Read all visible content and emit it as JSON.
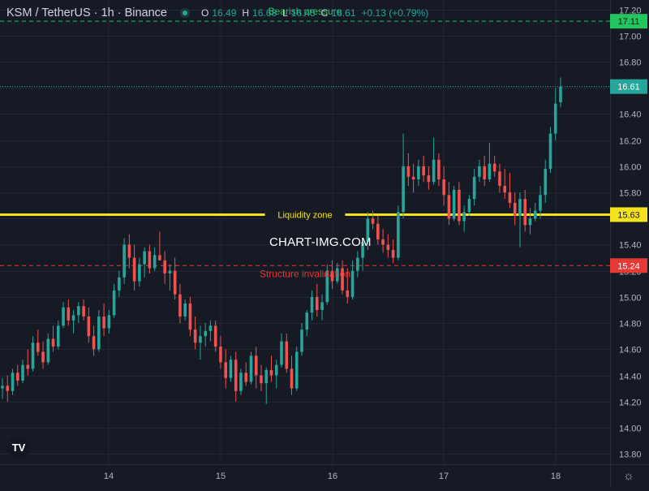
{
  "header": {
    "symbol": "KSM / TetherUS · 1h · Binance",
    "o_label": "O",
    "o_value": "16.49",
    "h_label": "H",
    "h_value": "16.68",
    "l_label": "L",
    "l_value": "16.45",
    "c_label": "C",
    "c_value": "16.61",
    "change": "+0.13 (+0.79%)"
  },
  "watermark": "CHART-IMG.COM",
  "logo_text": "TV",
  "colors": {
    "background": "#161a25",
    "grid": "#232734",
    "up": "#26a69a",
    "down": "#ef5350",
    "liquidity": "#f5e21f",
    "bearish": "#22c55e",
    "structure": "#e53935",
    "axis_text": "#b2b5be"
  },
  "chart_data": {
    "type": "candlestick",
    "symbol": "KSM / TetherUS",
    "interval": "1h",
    "exchange": "Binance",
    "ylim": [
      13.72,
      17.26
    ],
    "y_ticks": [
      "13.80",
      "14.00",
      "14.20",
      "14.40",
      "14.60",
      "14.80",
      "15.00",
      "15.20",
      "15.40",
      "15.60",
      "15.80",
      "16.00",
      "16.20",
      "16.40",
      "16.60",
      "16.80",
      "17.00",
      "17.20"
    ],
    "x_ticks": [
      "14",
      "15",
      "16",
      "17",
      "18"
    ],
    "last_price": "16.61",
    "levels": [
      {
        "label": "Bearish pressure",
        "price": "17.11",
        "value": 17.11,
        "style": "dashed",
        "color": "#22c55e"
      },
      {
        "label": "Liquidity zone",
        "price": "15.63",
        "value": 15.63,
        "style": "solid",
        "color": "#f5e21f"
      },
      {
        "label": "Structure invalidation",
        "price": "15.24",
        "value": 15.24,
        "style": "dashed",
        "color": "#e53935"
      }
    ],
    "candles": [
      [
        14.3,
        14.38,
        14.22,
        14.32
      ],
      [
        14.32,
        14.4,
        14.2,
        14.28
      ],
      [
        14.28,
        14.45,
        14.25,
        14.42
      ],
      [
        14.42,
        14.48,
        14.32,
        14.36
      ],
      [
        14.36,
        14.52,
        14.34,
        14.48
      ],
      [
        14.48,
        14.6,
        14.4,
        14.45
      ],
      [
        14.45,
        14.7,
        14.43,
        14.65
      ],
      [
        14.65,
        14.75,
        14.55,
        14.58
      ],
      [
        14.58,
        14.66,
        14.45,
        14.5
      ],
      [
        14.5,
        14.72,
        14.48,
        14.68
      ],
      [
        14.68,
        14.78,
        14.58,
        14.62
      ],
      [
        14.62,
        14.82,
        14.6,
        14.78
      ],
      [
        14.78,
        14.96,
        14.76,
        14.92
      ],
      [
        14.92,
        14.98,
        14.78,
        14.82
      ],
      [
        14.82,
        14.9,
        14.72,
        14.86
      ],
      [
        14.86,
        14.96,
        14.8,
        14.93
      ],
      [
        14.93,
        14.98,
        14.82,
        14.85
      ],
      [
        14.85,
        14.92,
        14.65,
        14.7
      ],
      [
        14.7,
        14.78,
        14.55,
        14.6
      ],
      [
        14.6,
        14.9,
        14.58,
        14.85
      ],
      [
        14.85,
        14.95,
        14.7,
        14.76
      ],
      [
        14.76,
        14.9,
        14.72,
        14.86
      ],
      [
        14.86,
        15.1,
        14.84,
        15.05
      ],
      [
        15.05,
        15.2,
        15.0,
        15.15
      ],
      [
        15.15,
        15.45,
        15.1,
        15.4
      ],
      [
        15.4,
        15.48,
        15.22,
        15.3
      ],
      [
        15.3,
        15.4,
        15.05,
        15.12
      ],
      [
        15.12,
        15.3,
        15.08,
        15.25
      ],
      [
        15.25,
        15.38,
        15.15,
        15.35
      ],
      [
        15.35,
        15.4,
        15.18,
        15.22
      ],
      [
        15.22,
        15.38,
        15.2,
        15.32
      ],
      [
        15.32,
        15.5,
        15.28,
        15.28
      ],
      [
        15.28,
        15.35,
        15.1,
        15.18
      ],
      [
        15.18,
        15.25,
        15.05,
        15.2
      ],
      [
        15.2,
        15.3,
        14.98,
        15.02
      ],
      [
        15.02,
        15.1,
        14.8,
        14.85
      ],
      [
        14.85,
        14.98,
        14.82,
        14.95
      ],
      [
        14.95,
        15.0,
        14.7,
        14.75
      ],
      [
        14.75,
        14.85,
        14.6,
        14.65
      ],
      [
        14.65,
        14.78,
        14.52,
        14.7
      ],
      [
        14.7,
        14.8,
        14.62,
        14.74
      ],
      [
        14.74,
        14.82,
        14.66,
        14.78
      ],
      [
        14.78,
        14.82,
        14.58,
        14.62
      ],
      [
        14.62,
        14.7,
        14.45,
        14.5
      ],
      [
        14.5,
        14.6,
        14.3,
        14.38
      ],
      [
        14.38,
        14.55,
        14.35,
        14.52
      ],
      [
        14.52,
        14.58,
        14.2,
        14.28
      ],
      [
        14.28,
        14.45,
        14.25,
        14.42
      ],
      [
        14.42,
        14.5,
        14.32,
        14.35
      ],
      [
        14.35,
        14.58,
        14.33,
        14.55
      ],
      [
        14.55,
        14.62,
        14.3,
        14.4
      ],
      [
        14.4,
        14.48,
        14.28,
        14.34
      ],
      [
        14.34,
        14.46,
        14.18,
        14.44
      ],
      [
        14.44,
        14.55,
        14.35,
        14.4
      ],
      [
        14.4,
        14.52,
        14.3,
        14.48
      ],
      [
        14.48,
        14.72,
        14.46,
        14.66
      ],
      [
        14.66,
        14.72,
        14.42,
        14.45
      ],
      [
        14.45,
        14.55,
        14.25,
        14.3
      ],
      [
        14.3,
        14.62,
        14.28,
        14.58
      ],
      [
        14.58,
        14.8,
        14.55,
        14.75
      ],
      [
        14.75,
        14.9,
        14.7,
        14.88
      ],
      [
        14.88,
        15.05,
        14.82,
        15.0
      ],
      [
        15.0,
        15.1,
        14.85,
        14.9
      ],
      [
        14.9,
        15.02,
        14.82,
        14.96
      ],
      [
        14.96,
        15.25,
        14.94,
        15.2
      ],
      [
        15.2,
        15.28,
        15.06,
        15.12
      ],
      [
        15.12,
        15.26,
        15.1,
        15.22
      ],
      [
        15.22,
        15.28,
        15.02,
        15.05
      ],
      [
        15.05,
        15.22,
        14.95,
        15.0
      ],
      [
        15.0,
        15.28,
        14.98,
        15.2
      ],
      [
        15.2,
        15.35,
        15.15,
        15.3
      ],
      [
        15.3,
        15.45,
        15.2,
        15.42
      ],
      [
        15.42,
        15.65,
        15.36,
        15.6
      ],
      [
        15.6,
        15.66,
        15.52,
        15.56
      ],
      [
        15.56,
        15.62,
        15.4,
        15.44
      ],
      [
        15.44,
        15.52,
        15.34,
        15.4
      ],
      [
        15.4,
        15.48,
        15.3,
        15.36
      ],
      [
        15.36,
        15.44,
        15.26,
        15.3
      ],
      [
        15.3,
        15.7,
        15.28,
        15.65
      ],
      [
        15.65,
        16.25,
        15.6,
        16.0
      ],
      [
        16.0,
        16.1,
        15.85,
        15.92
      ],
      [
        15.92,
        16.02,
        15.8,
        15.9
      ],
      [
        15.9,
        16.05,
        15.85,
        16.0
      ],
      [
        16.0,
        16.08,
        15.88,
        15.93
      ],
      [
        15.93,
        16.0,
        15.82,
        15.88
      ],
      [
        15.88,
        16.22,
        15.86,
        16.05
      ],
      [
        16.05,
        16.1,
        15.85,
        15.9
      ],
      [
        15.9,
        16.0,
        15.7,
        15.78
      ],
      [
        15.78,
        15.88,
        15.55,
        15.6
      ],
      [
        15.6,
        15.85,
        15.58,
        15.82
      ],
      [
        15.82,
        15.88,
        15.55,
        15.58
      ],
      [
        15.58,
        15.7,
        15.5,
        15.65
      ],
      [
        15.65,
        15.78,
        15.62,
        15.75
      ],
      [
        15.75,
        15.98,
        15.7,
        15.92
      ],
      [
        15.92,
        16.05,
        15.88,
        16.0
      ],
      [
        16.0,
        16.08,
        15.85,
        15.9
      ],
      [
        15.9,
        16.18,
        15.88,
        16.02
      ],
      [
        16.02,
        16.08,
        15.92,
        15.96
      ],
      [
        15.96,
        16.02,
        15.8,
        15.85
      ],
      [
        15.85,
        15.98,
        15.75,
        15.8
      ],
      [
        15.8,
        15.95,
        15.68,
        15.72
      ],
      [
        15.72,
        15.8,
        15.55,
        15.62
      ],
      [
        15.62,
        15.8,
        15.38,
        15.75
      ],
      [
        15.75,
        15.82,
        15.5,
        15.55
      ],
      [
        15.55,
        15.68,
        15.48,
        15.6
      ],
      [
        15.6,
        15.72,
        15.58,
        15.66
      ],
      [
        15.66,
        15.85,
        15.6,
        15.78
      ],
      [
        15.78,
        16.05,
        15.72,
        15.98
      ],
      [
        15.98,
        16.3,
        15.95,
        16.25
      ],
      [
        16.25,
        16.6,
        16.2,
        16.48
      ],
      [
        16.49,
        16.68,
        16.45,
        16.61
      ]
    ]
  }
}
